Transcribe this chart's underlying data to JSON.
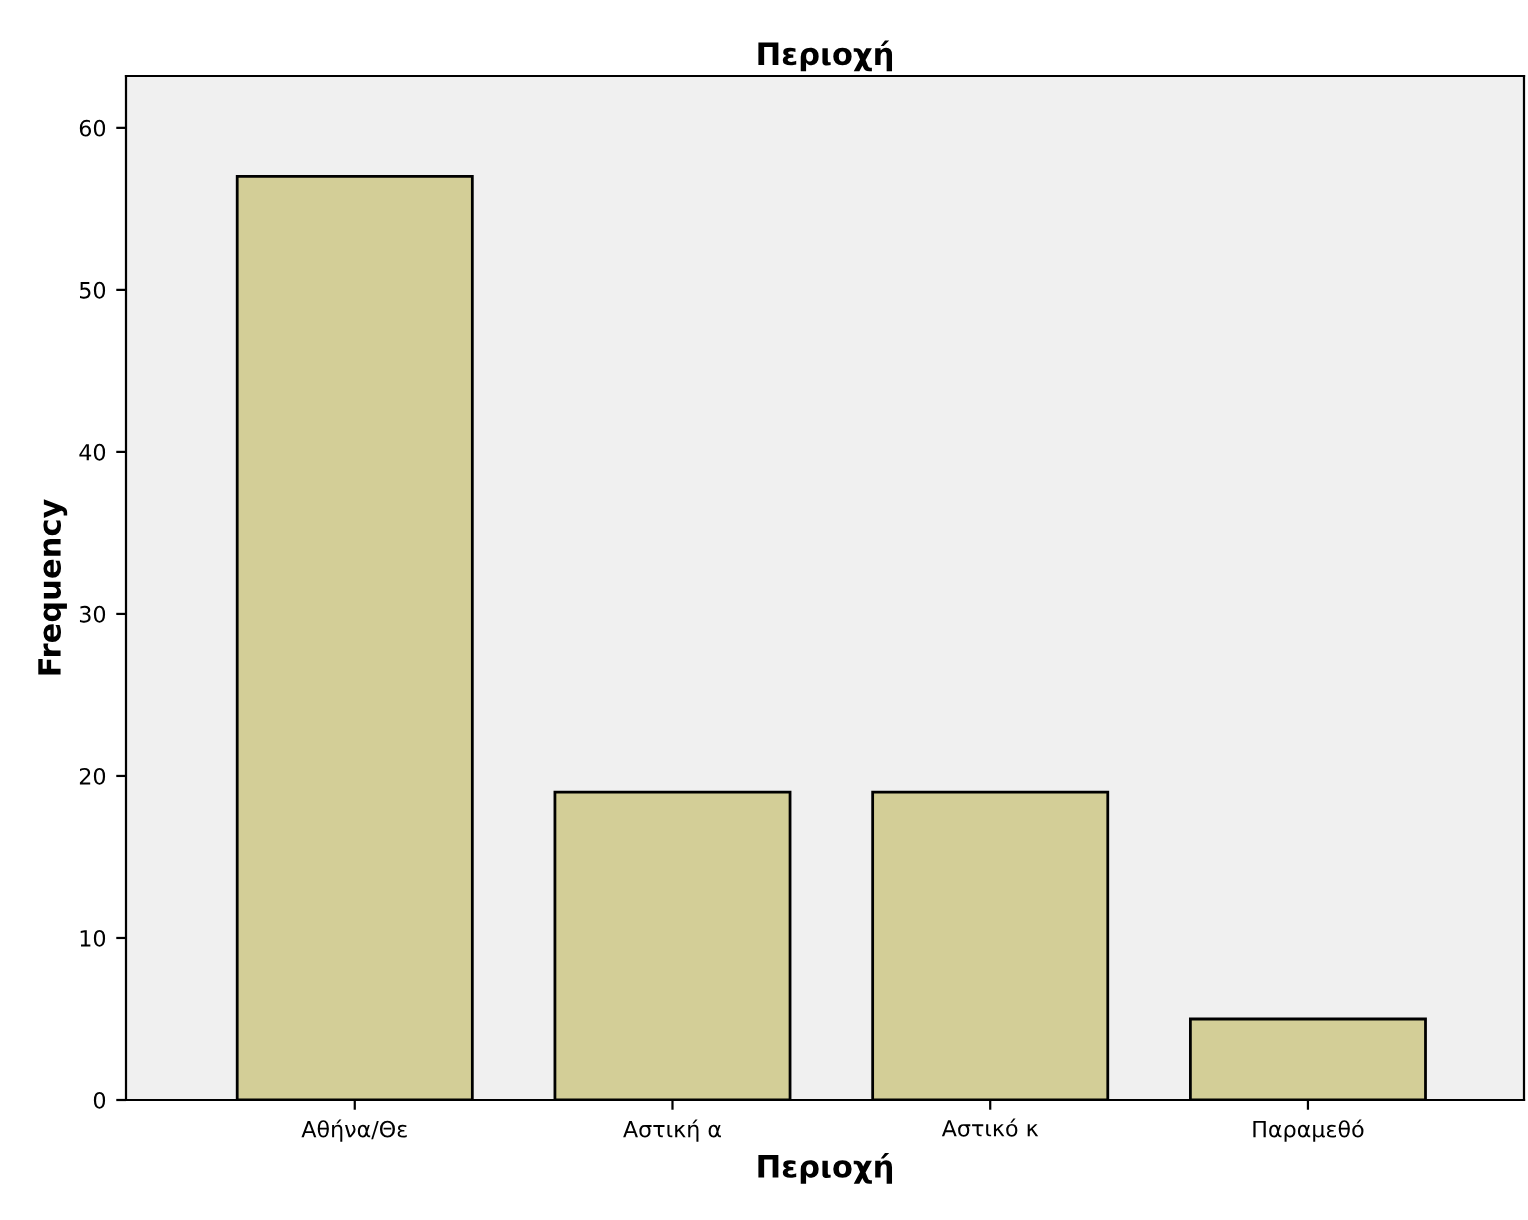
{
  "chart_data": {
    "type": "bar",
    "title": "Περιοχή",
    "xlabel": "Περιοχή",
    "ylabel": "Frequency",
    "categories": [
      "Αθήνα/Θε",
      "Αστική α",
      "Αστικό κ",
      "Παραμεθό"
    ],
    "values": [
      57,
      19,
      19,
      5
    ],
    "color": "#d3ce97",
    "ylim": [
      0,
      63.2
    ],
    "yticks": [
      0,
      10,
      20,
      30,
      40,
      50,
      60
    ],
    "grid": false
  }
}
